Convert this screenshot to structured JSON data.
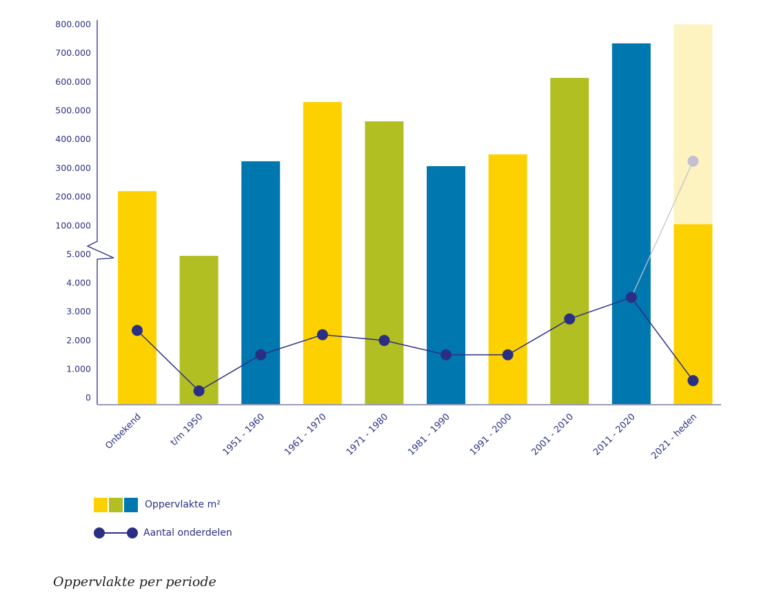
{
  "chart_data": {
    "type": "bar",
    "title": "Oppervlakte per periode",
    "xlabel": "",
    "ylabel": "",
    "categories": [
      "Onbekend",
      "t/m 1950",
      "1951 - 1960",
      "1961 - 1970",
      "1971 - 1980",
      "1981 - 1990",
      "1991 - 2000",
      "2001 - 2010",
      "2011 - 2020",
      "2021 - heden"
    ],
    "axis": {
      "broken": true,
      "lower_segment": {
        "range": [
          0,
          5000
        ],
        "ticks": [
          0,
          1000,
          2000,
          3000,
          4000,
          5000
        ],
        "tick_labels": [
          "0",
          "1.000",
          "2.000",
          "3.000",
          "4.000",
          "5.000"
        ]
      },
      "upper_segment": {
        "range": [
          100000,
          800000
        ],
        "ticks": [
          100000,
          200000,
          300000,
          400000,
          500000,
          600000,
          700000,
          800000
        ],
        "tick_labels": [
          "100.000",
          "200.000",
          "300.000",
          "400.000",
          "500.000",
          "600.000",
          "700.000",
          "800.000"
        ]
      }
    },
    "series": [
      {
        "name": "Oppervlakte m²",
        "kind": "bar",
        "values": [
          220000,
          4950,
          324000,
          530000,
          463000,
          307000,
          348000,
          614000,
          734000,
          105000
        ],
        "colors": [
          "#fdd100",
          "#b1bf22",
          "#0077ae",
          "#fdd100",
          "#b1bf22",
          "#0077ae",
          "#fdd100",
          "#b1bf22",
          "#0077ae",
          "#fdd100"
        ],
        "projection": {
          "category": "2021 - heden",
          "value": 800000,
          "color": "#fdf3c0"
        }
      },
      {
        "name": "Aantal onderdelen",
        "kind": "line",
        "color": "#2b2f84",
        "values": [
          2350,
          240,
          1500,
          2200,
          2000,
          1500,
          1500,
          2750,
          3500,
          600
        ],
        "projection": {
          "category": "2021 - heden",
          "value": 324000,
          "color": "#c4c0d2"
        }
      }
    ],
    "legend": {
      "placement": "bottom-left",
      "items": [
        {
          "label": "Oppervlakte m²",
          "swatches": [
            "#fdd100",
            "#b1bf22",
            "#0077ae"
          ]
        },
        {
          "label": "Aantal onderdelen",
          "color": "#2b2f84"
        }
      ]
    },
    "grid": false
  }
}
